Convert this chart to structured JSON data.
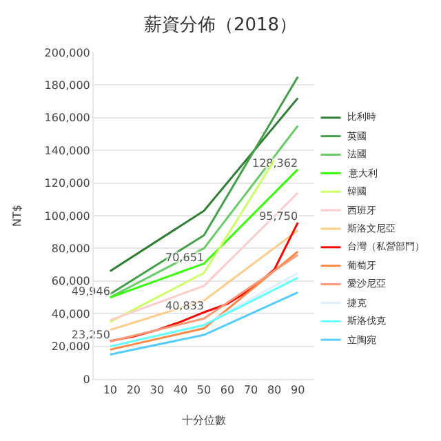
{
  "chart_data": {
    "type": "line",
    "title": "薪資分佈（2018）",
    "xlabel": "十分位數",
    "ylabel": "NT$",
    "xlim": [
      3,
      97
    ],
    "xticks": [
      10,
      20,
      30,
      40,
      50,
      60,
      70,
      80,
      90
    ],
    "ylim": [
      0,
      200000
    ],
    "yticks": [
      {
        "value": 0,
        "label": "0"
      },
      {
        "value": 20000,
        "label": "20,000"
      },
      {
        "value": 40000,
        "label": "40,000"
      },
      {
        "value": 60000,
        "label": "60,000"
      },
      {
        "value": 80000,
        "label": "80,000"
      },
      {
        "value": 100000,
        "label": "100,000"
      },
      {
        "value": 120000,
        "label": "120,000"
      },
      {
        "value": 140000,
        "label": "140,000"
      },
      {
        "value": 160000,
        "label": "160,000"
      },
      {
        "value": 180000,
        "label": "180,000"
      },
      {
        "value": 200000,
        "label": "200,000"
      }
    ],
    "grid": "y",
    "legend": "right",
    "marker": "none",
    "series": [
      {
        "name": "比利時",
        "color": "#2e7d32",
        "x": [
          10,
          50,
          90
        ],
        "values": [
          66000,
          103000,
          172000
        ]
      },
      {
        "name": "英國",
        "color": "#43a047",
        "x": [
          10,
          50,
          90
        ],
        "values": [
          52000,
          88000,
          185000
        ]
      },
      {
        "name": "法國",
        "color": "#66cc66",
        "x": [
          10,
          50,
          90
        ],
        "values": [
          50000,
          80000,
          155000
        ]
      },
      {
        "name": "意大利",
        "color": "#33ff00",
        "x": [
          10,
          50,
          90
        ],
        "values": [
          49946,
          70651,
          128362
        ],
        "value_labels": [
          "49,946",
          "70,651",
          "128,362"
        ]
      },
      {
        "name": "韓國",
        "color": "#ccff66",
        "x": [
          10,
          50,
          80
        ],
        "values": [
          35000,
          65000,
          134000
        ]
      },
      {
        "name": "西班牙",
        "color": "#ffcccc",
        "x": [
          10,
          50,
          90
        ],
        "values": [
          36000,
          57000,
          114000
        ]
      },
      {
        "name": "斯洛文尼亞",
        "color": "#ffcc88",
        "x": [
          10,
          50,
          90
        ],
        "values": [
          30000,
          48000,
          91000
        ]
      },
      {
        "name": "台灣（私營部門）",
        "color": "#ff0000",
        "x": [
          10,
          20,
          30,
          40,
          50,
          60,
          70,
          80,
          90
        ],
        "values": [
          23250,
          26000,
          30000,
          35000,
          40833,
          46000,
          55000,
          67000,
          95750
        ],
        "value_labels": [
          "23,250",
          null,
          null,
          null,
          "40,833",
          null,
          null,
          null,
          "95,750"
        ]
      },
      {
        "name": "葡萄牙",
        "color": "#ff8844",
        "x": [
          10,
          50,
          90
        ],
        "values": [
          18000,
          31000,
          78000
        ]
      },
      {
        "name": "愛沙尼亞",
        "color": "#ff9977",
        "x": [
          10,
          50,
          90
        ],
        "values": [
          23000,
          37000,
          76000
        ]
      },
      {
        "name": "捷克",
        "color": "#ddeeff",
        "x": [
          10,
          50,
          90
        ],
        "values": [
          20000,
          33000,
          65000
        ]
      },
      {
        "name": "斯洛伐克",
        "color": "#66ffff",
        "x": [
          10,
          50,
          90
        ],
        "values": [
          20000,
          33000,
          62000
        ]
      },
      {
        "name": "立陶宛",
        "color": "#55ccff",
        "x": [
          10,
          50,
          90
        ],
        "values": [
          15000,
          27000,
          53000
        ]
      }
    ]
  }
}
